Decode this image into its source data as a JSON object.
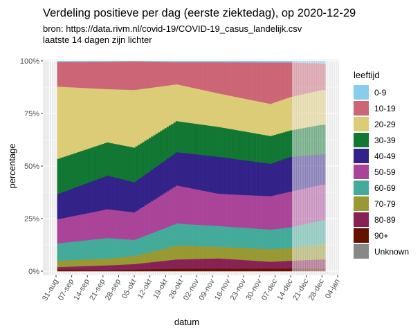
{
  "chart_data": {
    "type": "bar",
    "stacked": "percent",
    "title": "Verdeling positieve per dag (eerste ziektedag), op 2020-12-29",
    "subtitle": [
      "bron: https://data.rivm.nl/covid-19/COVID-19_casus_landelijk.csv",
      "laatste 14 dagen zijn lichter"
    ],
    "xlabel": "datum",
    "ylabel": "percentage",
    "xlim": [
      "2020-08-28",
      "2021-01-05"
    ],
    "ylim": [
      0,
      100
    ],
    "x_ticks": [
      "31-aug",
      "07-sep",
      "14-sep",
      "21-sep",
      "28-sep",
      "05-okt",
      "12-okt",
      "19-okt",
      "26-okt",
      "02-nov",
      "09-nov",
      "16-nov",
      "23-nov",
      "30-nov",
      "07-dec",
      "14-dec",
      "21-dec",
      "28-dec",
      "04-jan"
    ],
    "x_tick_dates": [
      "2020-08-31",
      "2020-09-07",
      "2020-09-14",
      "2020-09-21",
      "2020-09-28",
      "2020-10-05",
      "2020-10-12",
      "2020-10-19",
      "2020-10-26",
      "2020-11-02",
      "2020-11-09",
      "2020-11-16",
      "2020-11-23",
      "2020-11-30",
      "2020-12-07",
      "2020-12-14",
      "2020-12-21",
      "2020-12-28",
      "2021-01-04"
    ],
    "y_ticks": [
      {
        "value": 0,
        "label": "0%"
      },
      {
        "value": 25,
        "label": "25%"
      },
      {
        "value": 50,
        "label": "50%"
      },
      {
        "value": 75,
        "label": "75%"
      },
      {
        "value": 100,
        "label": "100%"
      }
    ],
    "grid": true,
    "lighter_from": "2020-12-15",
    "date_range": [
      "2020-09-01",
      "2020-12-29"
    ],
    "legend": {
      "title": "leeftijd",
      "position": "right"
    },
    "series": [
      {
        "name": "0-9",
        "color": "#88CCEE"
      },
      {
        "name": "10-19",
        "color": "#CC6677"
      },
      {
        "name": "20-29",
        "color": "#DDCC77"
      },
      {
        "name": "30-39",
        "color": "#117733"
      },
      {
        "name": "40-49",
        "color": "#332288"
      },
      {
        "name": "50-59",
        "color": "#AA4499"
      },
      {
        "name": "60-69",
        "color": "#44AA99"
      },
      {
        "name": "70-79",
        "color": "#999933"
      },
      {
        "name": "80-89",
        "color": "#882255"
      },
      {
        "name": "90+",
        "color": "#661100"
      },
      {
        "name": "Unknown",
        "color": "#888888"
      }
    ],
    "samples": [
      {
        "date": "2020-09-01",
        "values": [
          0.5,
          11.7,
          34.3,
          16.7,
          12.0,
          11.5,
          8.3,
          3.0,
          1.3,
          0.7,
          0
        ]
      },
      {
        "date": "2020-09-23",
        "values": [
          0.4,
          13.0,
          25.3,
          15.8,
          16.0,
          13.7,
          9.8,
          3.2,
          2.3,
          0.5,
          0
        ]
      },
      {
        "date": "2020-10-05",
        "values": [
          0.2,
          13.6,
          27.4,
          16.5,
          14.3,
          13.1,
          7.7,
          3.8,
          2.6,
          0.8,
          0
        ]
      },
      {
        "date": "2020-10-24",
        "values": [
          0.6,
          10.5,
          17.5,
          14.8,
          15.8,
          18.1,
          10.5,
          6.6,
          4.4,
          1.2,
          0
        ]
      },
      {
        "date": "2020-11-12",
        "values": [
          0.6,
          14.9,
          15.9,
          14.2,
          17.6,
          15.3,
          9.9,
          5.5,
          4.9,
          1.2,
          0
        ]
      },
      {
        "date": "2020-12-05",
        "values": [
          0.7,
          19.7,
          15.3,
          13.2,
          15.4,
          15.9,
          9.3,
          6.0,
          3.3,
          1.2,
          0
        ]
      },
      {
        "date": "2020-12-14",
        "values": [
          0.7,
          16.4,
          15.9,
          12.6,
          16.5,
          17.0,
          9.9,
          6.0,
          3.7,
          1.3,
          0
        ]
      },
      {
        "date": "2020-12-28",
        "values": [
          1.2,
          12.6,
          16.5,
          14.1,
          14.4,
          16.9,
          11.5,
          7.2,
          4.3,
          1.3,
          0
        ]
      }
    ]
  }
}
